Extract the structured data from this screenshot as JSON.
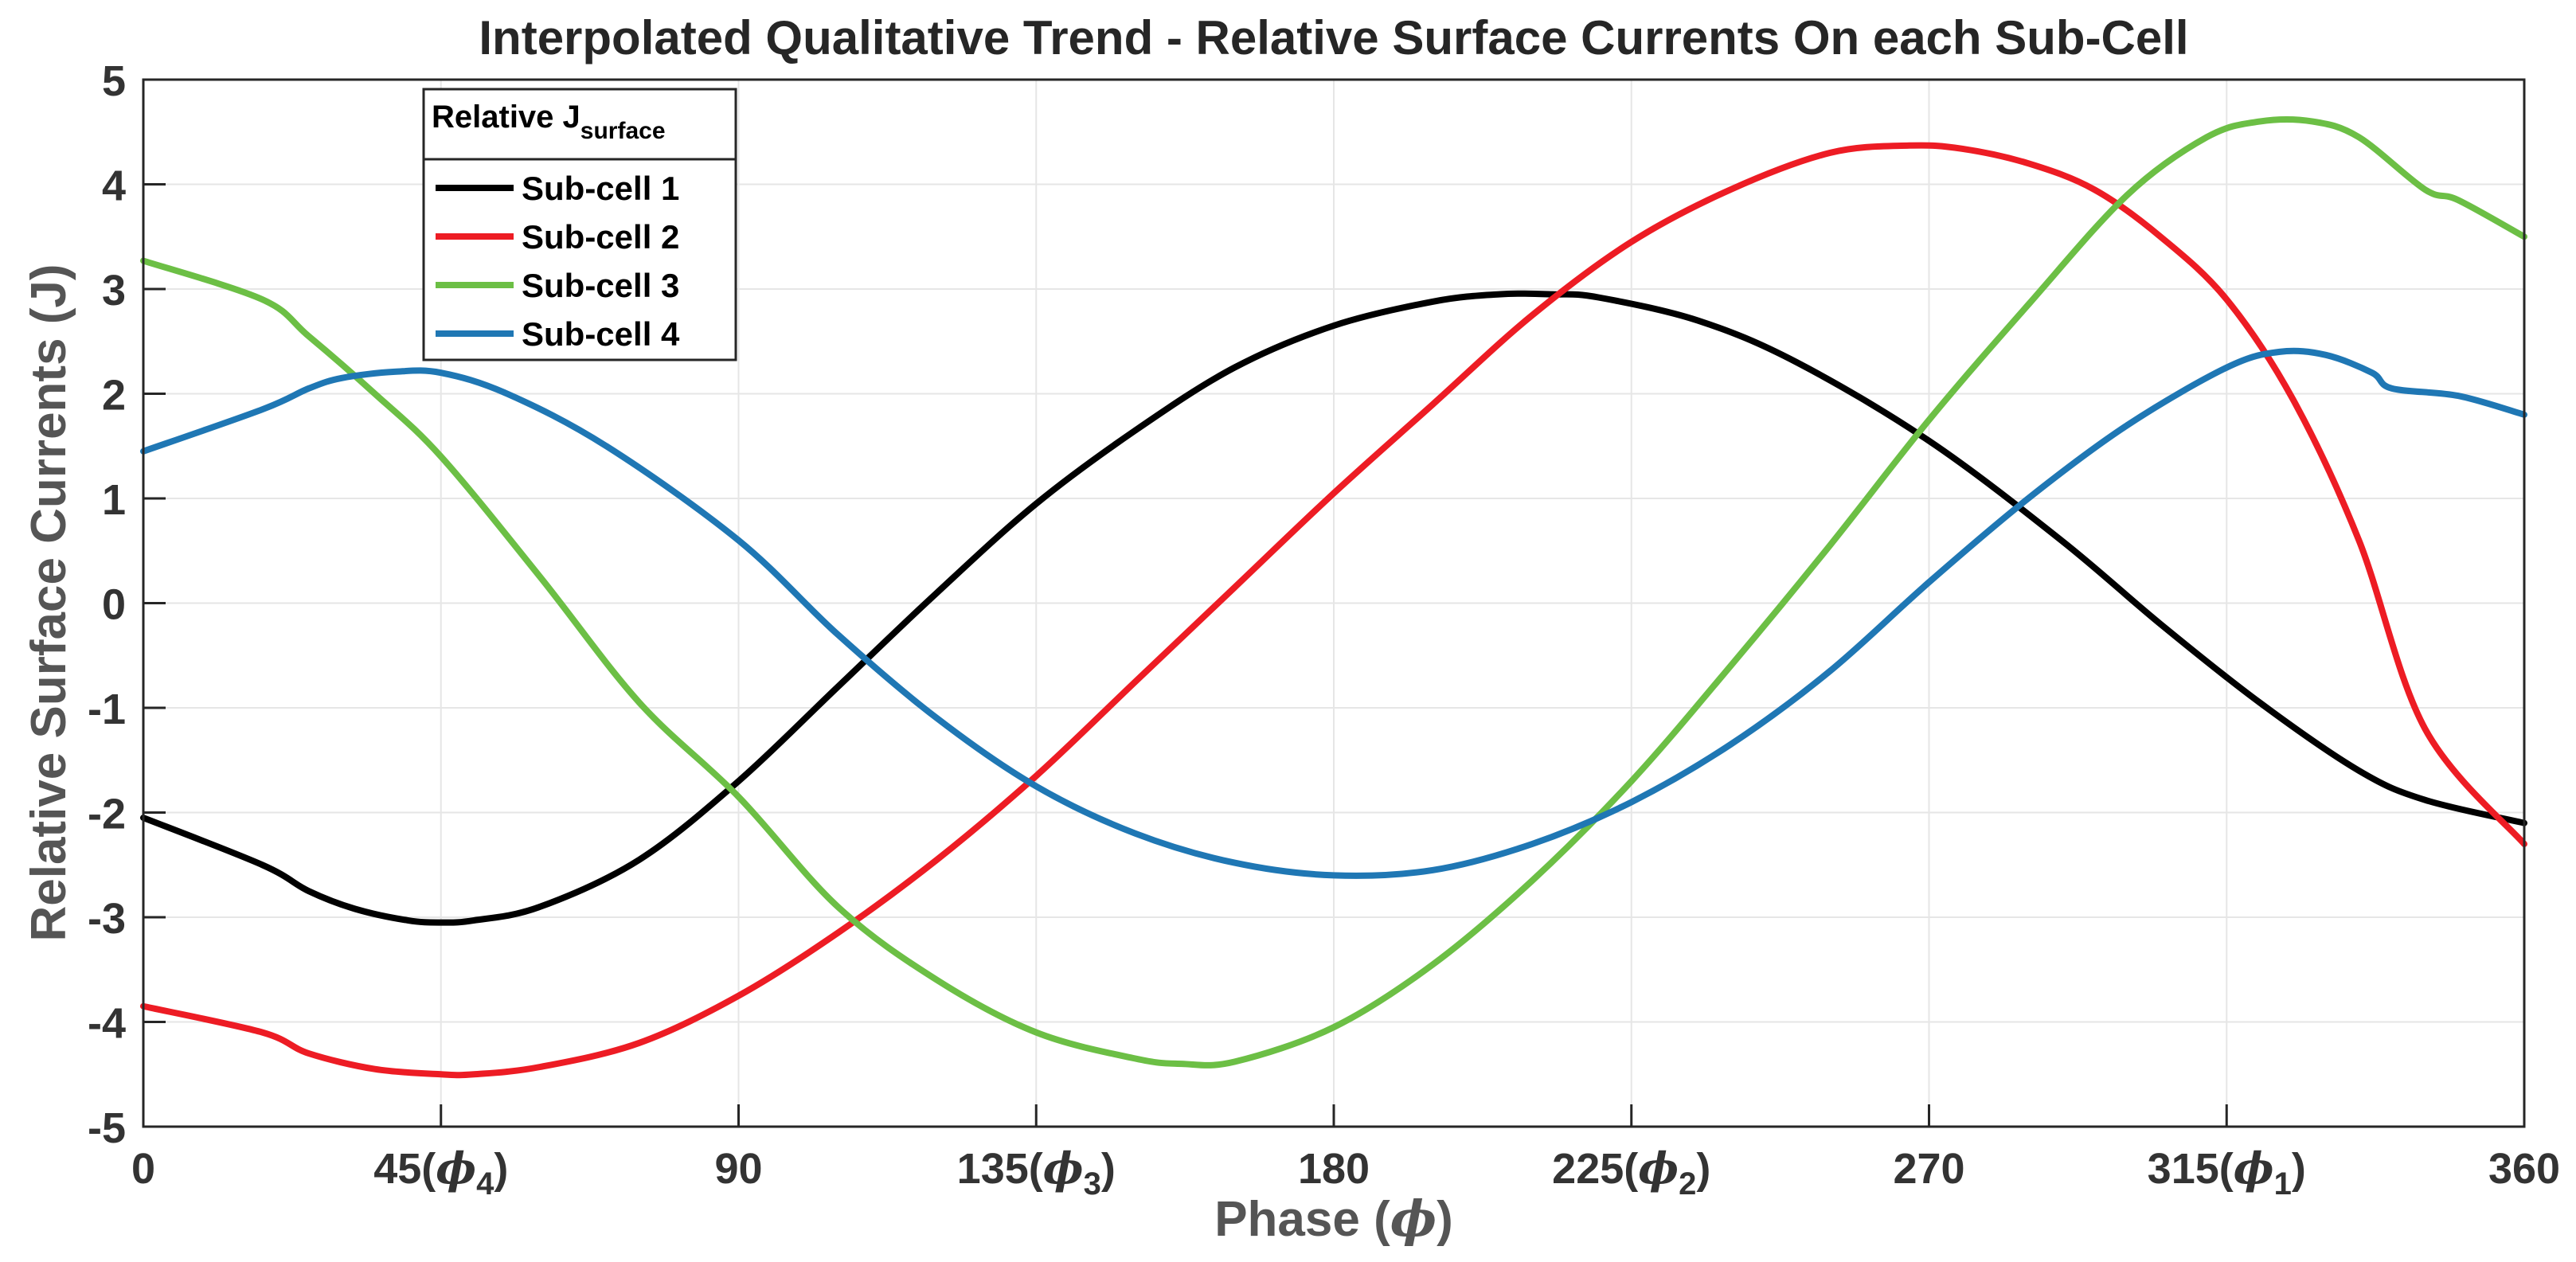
{
  "chart_data": {
    "type": "line",
    "title": "Interpolated Qualitative Trend - Relative Surface Currents On each Sub-Cell",
    "xlabel": "Phase",
    "xlabel_symbol": "ϕ",
    "ylabel": "Relative Surface Currents (J)",
    "xlim": [
      0,
      360
    ],
    "ylim": [
      -5,
      5
    ],
    "grid": true,
    "x_ticks": [
      {
        "value": 0,
        "label": "0",
        "sub": ""
      },
      {
        "value": 45,
        "label": "45(",
        "symbol": "ϕ",
        "sub": "4",
        "close": ")"
      },
      {
        "value": 90,
        "label": "90",
        "sub": ""
      },
      {
        "value": 135,
        "label": "135(",
        "symbol": "ϕ",
        "sub": "3",
        "close": ")"
      },
      {
        "value": 180,
        "label": "180",
        "sub": ""
      },
      {
        "value": 225,
        "label": "225(",
        "symbol": "ϕ",
        "sub": "2",
        "close": ")"
      },
      {
        "value": 270,
        "label": "270",
        "sub": ""
      },
      {
        "value": 315,
        "label": "315(",
        "symbol": "ϕ",
        "sub": "1",
        "close": ")"
      },
      {
        "value": 360,
        "label": "360",
        "sub": ""
      }
    ],
    "y_ticks": [
      5,
      4,
      3,
      2,
      1,
      0,
      -1,
      -2,
      -3,
      -4,
      -5
    ],
    "legend": {
      "title": "Relative J",
      "title_sub": "surface",
      "position": "top-left"
    },
    "series": [
      {
        "name": "Sub-cell 1",
        "color": "#000000",
        "x": [
          0,
          18,
          25,
          32,
          40,
          45,
          50,
          60,
          75,
          90,
          105,
          120,
          135,
          150,
          165,
          180,
          195,
          205,
          213,
          220,
          235,
          250,
          270,
          290,
          305,
          320,
          335,
          345,
          360
        ],
        "y": [
          -2.05,
          -2.5,
          -2.75,
          -2.92,
          -3.03,
          -3.05,
          -3.03,
          -2.9,
          -2.45,
          -1.7,
          -0.8,
          0.1,
          0.95,
          1.65,
          2.25,
          2.65,
          2.88,
          2.95,
          2.95,
          2.92,
          2.7,
          2.3,
          1.55,
          0.6,
          -0.2,
          -0.95,
          -1.6,
          -1.88,
          -2.1
        ]
      },
      {
        "name": "Sub-cell 2",
        "color": "#ED1C24",
        "x": [
          0,
          18,
          25,
          35,
          45,
          50,
          60,
          75,
          90,
          105,
          120,
          135,
          150,
          165,
          180,
          195,
          210,
          225,
          240,
          255,
          267,
          275,
          285,
          295,
          305,
          315,
          325,
          335,
          345,
          360
        ],
        "y": [
          -3.85,
          -4.1,
          -4.3,
          -4.45,
          -4.5,
          -4.5,
          -4.43,
          -4.2,
          -3.75,
          -3.15,
          -2.45,
          -1.65,
          -0.75,
          0.15,
          1.05,
          1.9,
          2.75,
          3.45,
          3.95,
          4.3,
          4.37,
          4.34,
          4.2,
          3.95,
          3.5,
          2.9,
          1.95,
          0.6,
          -1.2,
          -2.3
        ]
      },
      {
        "name": "Sub-cell 3",
        "color": "#6CBF45",
        "x": [
          0,
          18,
          25,
          35,
          45,
          60,
          75,
          90,
          105,
          120,
          135,
          150,
          157,
          165,
          180,
          195,
          210,
          225,
          240,
          255,
          270,
          285,
          300,
          312,
          320,
          328,
          335,
          345,
          350,
          360
        ],
        "y": [
          3.27,
          2.9,
          2.55,
          2.0,
          1.4,
          0.25,
          -0.95,
          -1.85,
          -2.9,
          -3.6,
          -4.1,
          -4.35,
          -4.4,
          -4.38,
          -4.05,
          -3.45,
          -2.65,
          -1.7,
          -0.6,
          0.55,
          1.75,
          2.85,
          3.9,
          4.45,
          4.6,
          4.6,
          4.45,
          3.95,
          3.85,
          3.5
        ]
      },
      {
        "name": "Sub-cell 4",
        "color": "#1F77B4",
        "x": [
          0,
          18,
          25,
          30,
          38,
          45,
          55,
          70,
          90,
          105,
          120,
          135,
          150,
          165,
          180,
          195,
          210,
          225,
          240,
          255,
          270,
          285,
          300,
          315,
          323,
          330,
          337,
          340,
          350,
          360
        ],
        "y": [
          1.45,
          1.85,
          2.05,
          2.15,
          2.21,
          2.2,
          2.0,
          1.5,
          0.6,
          -0.3,
          -1.1,
          -1.75,
          -2.2,
          -2.48,
          -2.6,
          -2.55,
          -2.3,
          -1.9,
          -1.35,
          -0.65,
          0.2,
          1.0,
          1.7,
          2.25,
          2.4,
          2.37,
          2.2,
          2.05,
          1.98,
          1.8
        ]
      }
    ]
  }
}
